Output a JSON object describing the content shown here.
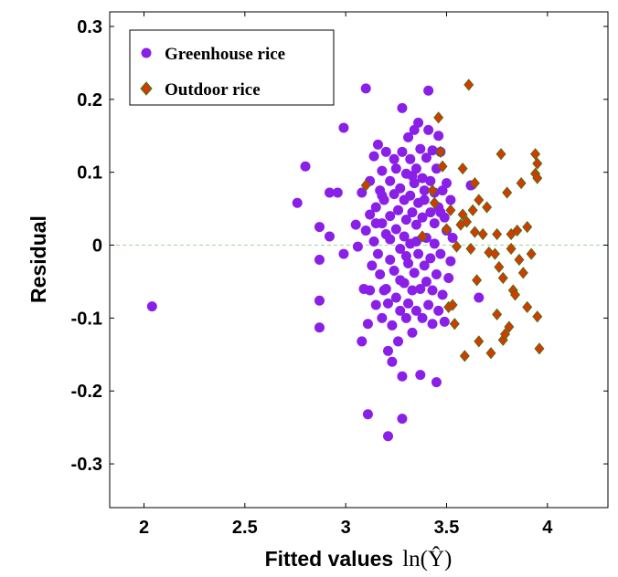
{
  "chart_data": {
    "type": "scatter",
    "xlabel": "Fitted values",
    "xlabel_math": "ln(Ŷ)",
    "ylabel": "Residual",
    "xlim": [
      1.83,
      4.3
    ],
    "ylim": [
      -0.36,
      0.32
    ],
    "x_ticks": [
      2,
      2.5,
      3,
      3.5,
      4
    ],
    "x_tick_labels": [
      "2",
      "2.5",
      "3",
      "3.5",
      "4"
    ],
    "y_ticks": [
      -0.3,
      -0.2,
      -0.1,
      0,
      0.1,
      0.2,
      0.3
    ],
    "y_tick_labels": [
      "-0.3",
      "-0.2",
      "-0.1",
      "0",
      "0.1",
      "0.2",
      "0.3"
    ],
    "zero_line": {
      "y": 0,
      "color": "#9fd39f",
      "style": "dashed"
    },
    "legend_position": "top-left",
    "series": [
      {
        "name": "Greenhouse rice",
        "marker": "circle",
        "color": "#8a1fe8",
        "points": [
          [
            2.04,
            -0.084
          ],
          [
            2.76,
            0.058
          ],
          [
            2.8,
            0.108
          ],
          [
            2.87,
            -0.113
          ],
          [
            2.87,
            -0.076
          ],
          [
            2.87,
            -0.02
          ],
          [
            2.87,
            0.025
          ],
          [
            2.92,
            0.072
          ],
          [
            2.92,
            0.012
          ],
          [
            2.96,
            0.072
          ],
          [
            2.99,
            0.161
          ],
          [
            2.99,
            -0.012
          ],
          [
            3.05,
            0.028
          ],
          [
            3.06,
            -0.002
          ],
          [
            3.08,
            0.072
          ],
          [
            3.08,
            -0.132
          ],
          [
            3.09,
            -0.06
          ],
          [
            3.1,
            0.215
          ],
          [
            3.1,
            0.02
          ],
          [
            3.11,
            -0.108
          ],
          [
            3.11,
            -0.232
          ],
          [
            3.12,
            0.042
          ],
          [
            3.12,
            0.088
          ],
          [
            3.12,
            -0.062
          ],
          [
            3.13,
            -0.028
          ],
          [
            3.14,
            0.122
          ],
          [
            3.14,
            0.005
          ],
          [
            3.15,
            -0.082
          ],
          [
            3.15,
            0.052
          ],
          [
            3.16,
            0.138
          ],
          [
            3.16,
            -0.012
          ],
          [
            3.17,
            0.075
          ],
          [
            3.17,
            -0.04
          ],
          [
            3.18,
            0.102
          ],
          [
            3.18,
            0.03
          ],
          [
            3.18,
            -0.1
          ],
          [
            3.19,
            0.062
          ],
          [
            3.19,
            -0.062
          ],
          [
            3.2,
            0.128
          ],
          [
            3.2,
            0.015
          ],
          [
            3.2,
            -0.06
          ],
          [
            3.21,
            -0.262
          ],
          [
            3.21,
            -0.145
          ],
          [
            3.22,
            0.088
          ],
          [
            3.22,
            0.04
          ],
          [
            3.22,
            -0.02
          ],
          [
            3.23,
            -0.11
          ],
          [
            3.23,
            -0.16
          ],
          [
            3.24,
            0.07
          ],
          [
            3.24,
            -0.035
          ],
          [
            3.25,
            0.105
          ],
          [
            3.25,
            0.022
          ],
          [
            3.25,
            -0.072
          ],
          [
            3.26,
            -0.132
          ],
          [
            3.26,
            0.048
          ],
          [
            3.27,
            0.078
          ],
          [
            3.27,
            -0.005
          ],
          [
            3.27,
            -0.09
          ],
          [
            3.28,
            0.188
          ],
          [
            3.28,
            0.128
          ],
          [
            3.28,
            -0.18
          ],
          [
            3.28,
            -0.238
          ],
          [
            3.29,
            0.062
          ],
          [
            3.29,
            0.012
          ],
          [
            3.29,
            -0.052
          ],
          [
            3.3,
            0.098
          ],
          [
            3.3,
            0.035
          ],
          [
            3.3,
            -0.1
          ],
          [
            3.31,
            0.148
          ],
          [
            3.31,
            -0.025
          ],
          [
            3.31,
            -0.08
          ],
          [
            3.32,
            0.118
          ],
          [
            3.32,
            0.068
          ],
          [
            3.32,
            0.002
          ],
          [
            3.33,
            0.045
          ],
          [
            3.33,
            -0.062
          ],
          [
            3.33,
            -0.12
          ],
          [
            3.34,
            0.158
          ],
          [
            3.34,
            0.085
          ],
          [
            3.34,
            -0.038
          ],
          [
            3.35,
            0.105
          ],
          [
            3.35,
            0.028
          ],
          [
            3.35,
            -0.09
          ],
          [
            3.36,
            0.168
          ],
          [
            3.36,
            0.058
          ],
          [
            3.36,
            -0.012
          ],
          [
            3.37,
            0.132
          ],
          [
            3.37,
            -0.178
          ],
          [
            3.37,
            -0.06
          ],
          [
            3.38,
            0.092
          ],
          [
            3.38,
            0.038
          ],
          [
            3.38,
            -0.1
          ],
          [
            3.39,
            0.075
          ],
          [
            3.39,
            -0.028
          ],
          [
            3.4,
            0.12
          ],
          [
            3.4,
            0.01
          ],
          [
            3.4,
            -0.05
          ],
          [
            3.41,
            0.212
          ],
          [
            3.41,
            0.158
          ],
          [
            3.41,
            -0.082
          ],
          [
            3.42,
            0.088
          ],
          [
            3.42,
            0.045
          ],
          [
            3.42,
            -0.018
          ],
          [
            3.43,
            0.13
          ],
          [
            3.43,
            -0.062
          ],
          [
            3.43,
            -0.108
          ],
          [
            3.44,
            0.072
          ],
          [
            3.44,
            0.002
          ],
          [
            3.45,
            0.105
          ],
          [
            3.45,
            -0.04
          ],
          [
            3.45,
            -0.188
          ],
          [
            3.46,
            0.15
          ],
          [
            3.46,
            0.052
          ],
          [
            3.46,
            -0.09
          ],
          [
            3.47,
            0.128
          ],
          [
            3.47,
            -0.012
          ],
          [
            3.48,
            0.075
          ],
          [
            3.48,
            -0.068
          ],
          [
            3.49,
            0.038
          ],
          [
            3.49,
            -0.105
          ],
          [
            3.5,
            0.085
          ],
          [
            3.5,
            0.02
          ],
          [
            3.51,
            -0.045
          ],
          [
            3.52,
            0.062
          ],
          [
            3.52,
            -0.022
          ],
          [
            3.18,
            0.068
          ],
          [
            3.24,
            0.118
          ],
          [
            3.15,
            0.03
          ],
          [
            3.3,
            -0.015
          ],
          [
            3.35,
            0.005
          ],
          [
            3.21,
            -0.08
          ],
          [
            3.27,
            -0.048
          ],
          [
            3.39,
            0.062
          ],
          [
            3.44,
            0.03
          ],
          [
            3.33,
            0.095
          ],
          [
            3.22,
            0.008
          ],
          [
            3.62,
            0.082
          ],
          [
            3.66,
            -0.072
          ],
          [
            3.47,
            0.045
          ],
          [
            3.53,
            0.01
          ]
        ]
      },
      {
        "name": "Outdoor rice",
        "marker": "diamond",
        "color": "#d23a00",
        "points": [
          [
            3.1,
            0.082
          ],
          [
            3.38,
            0.012
          ],
          [
            3.43,
            0.075
          ],
          [
            3.44,
            0.058
          ],
          [
            3.46,
            0.175
          ],
          [
            3.47,
            0.128
          ],
          [
            3.48,
            0.108
          ],
          [
            3.5,
            0.022
          ],
          [
            3.51,
            -0.085
          ],
          [
            3.52,
            0.048
          ],
          [
            3.53,
            -0.082
          ],
          [
            3.54,
            -0.108
          ],
          [
            3.55,
            -0.002
          ],
          [
            3.57,
            0.028
          ],
          [
            3.58,
            0.105
          ],
          [
            3.58,
            0.042
          ],
          [
            3.59,
            -0.152
          ],
          [
            3.6,
            0.032
          ],
          [
            3.61,
            0.22
          ],
          [
            3.62,
            -0.005
          ],
          [
            3.63,
            0.048
          ],
          [
            3.64,
            0.085
          ],
          [
            3.64,
            0.018
          ],
          [
            3.65,
            -0.048
          ],
          [
            3.66,
            -0.132
          ],
          [
            3.66,
            0.062
          ],
          [
            3.68,
            0.015
          ],
          [
            3.7,
            0.052
          ],
          [
            3.71,
            -0.01
          ],
          [
            3.72,
            -0.148
          ],
          [
            3.74,
            -0.012
          ],
          [
            3.75,
            0.015
          ],
          [
            3.75,
            -0.095
          ],
          [
            3.76,
            -0.03
          ],
          [
            3.77,
            0.125
          ],
          [
            3.78,
            -0.13
          ],
          [
            3.78,
            -0.045
          ],
          [
            3.79,
            -0.122
          ],
          [
            3.8,
            0.072
          ],
          [
            3.81,
            -0.112
          ],
          [
            3.82,
            -0.005
          ],
          [
            3.82,
            0.015
          ],
          [
            3.83,
            -0.062
          ],
          [
            3.84,
            -0.068
          ],
          [
            3.85,
            0.02
          ],
          [
            3.86,
            -0.02
          ],
          [
            3.87,
            0.085
          ],
          [
            3.88,
            -0.038
          ],
          [
            3.9,
            0.025
          ],
          [
            3.9,
            -0.085
          ],
          [
            3.92,
            -0.012
          ],
          [
            3.94,
            0.125
          ],
          [
            3.94,
            0.098
          ],
          [
            3.95,
            0.112
          ],
          [
            3.95,
            0.092
          ],
          [
            3.95,
            -0.098
          ],
          [
            3.96,
            -0.142
          ]
        ]
      }
    ]
  }
}
